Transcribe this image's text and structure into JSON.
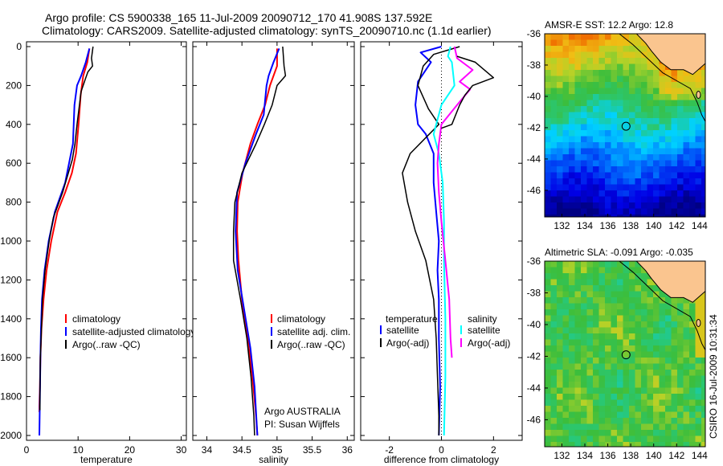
{
  "header": {
    "line1": "Argo profile: CS 5900338_165 11-Jul-2009 20090712_170 41.908S 137.592E",
    "line2": "Climatology: CARS2009. Satellite-adjusted climatology: synTS_20090710.nc (1.1d earlier)"
  },
  "stamp": "CSIRO 16-Jul-2009 10:31:34",
  "colors": {
    "climatology": "#ff0000",
    "satellite": "#0000ff",
    "argo": "#000000",
    "satellite_diff": "#00ffff",
    "argo_diff": "#ff00ff",
    "land": "#fac58f",
    "marker": "#000000"
  },
  "chart_data": [
    {
      "type": "line",
      "name": "temperature-panel",
      "xlabel": "temperature",
      "xlim": [
        0,
        31
      ],
      "ylim": [
        0,
        2000
      ],
      "y_reversed": true,
      "xticks": [
        0,
        10,
        20,
        30
      ],
      "yticks": [
        0,
        200,
        400,
        600,
        800,
        1000,
        1200,
        1400,
        1600,
        1800,
        2000
      ],
      "legend": [
        "climatology",
        "satellite-adjusted climatology",
        "Argo(..raw -QC)"
      ],
      "series": [
        {
          "name": "climatology",
          "color": "#ff0000",
          "width": 2,
          "x": [
            12.2,
            11.8,
            11.0,
            10.5,
            10.1,
            9.6,
            8.8,
            7.5,
            6.0,
            4.8,
            3.9,
            3.3,
            2.9,
            2.7,
            2.6,
            2.5,
            2.5
          ],
          "y": [
            10,
            80,
            150,
            250,
            400,
            550,
            650,
            750,
            850,
            1000,
            1150,
            1300,
            1450,
            1600,
            1750,
            1850,
            1880
          ]
        },
        {
          "name": "satellite",
          "color": "#0000ff",
          "width": 2,
          "x": [
            12.2,
            11.5,
            10.6,
            9.8,
            9.3,
            9.0,
            7.5,
            5.5,
            4.3,
            3.5,
            3.0,
            2.8,
            2.7,
            2.6,
            2.5
          ],
          "y": [
            10,
            80,
            150,
            200,
            300,
            500,
            700,
            850,
            1000,
            1150,
            1300,
            1450,
            1600,
            1800,
            2000
          ]
        },
        {
          "name": "argo",
          "color": "#000000",
          "width": 1.5,
          "x": [
            12.9,
            12.6,
            12.8,
            11.9,
            11.5,
            10.6,
            9.8,
            9.4,
            8.9,
            7.0,
            5.2,
            4.4,
            3.6,
            3.1,
            2.9,
            2.7,
            2.6,
            2.6
          ],
          "y": [
            0,
            60,
            100,
            130,
            160,
            230,
            400,
            500,
            580,
            750,
            880,
            1000,
            1150,
            1300,
            1450,
            1600,
            1800,
            1870
          ]
        }
      ]
    },
    {
      "type": "line",
      "name": "salinity-panel",
      "xlabel": "salinity",
      "xlim": [
        33.8,
        36.1
      ],
      "ylim": [
        0,
        2000
      ],
      "y_reversed": true,
      "xticks": [
        34,
        34.5,
        35,
        35.5,
        36
      ],
      "legend": [
        "climatology",
        "satellite adj. clim.",
        "Argo(..raw -QC)"
      ],
      "annotations": [
        "Argo AUSTRALIA",
        "PI: Susan Wijffels"
      ],
      "series": [
        {
          "name": "climatology",
          "color": "#ff0000",
          "width": 2,
          "x": [
            35.0,
            35.0,
            34.9,
            34.83,
            34.72,
            34.62,
            34.51,
            34.44,
            34.43,
            34.45,
            34.5,
            34.58,
            34.65,
            34.7,
            34.72
          ],
          "y": [
            10,
            100,
            200,
            300,
            400,
            500,
            650,
            800,
            950,
            1100,
            1300,
            1500,
            1700,
            1900,
            2000
          ]
        },
        {
          "name": "satellite",
          "color": "#0000ff",
          "width": 2,
          "x": [
            35.03,
            34.95,
            34.88,
            34.85,
            34.81,
            34.7,
            34.55,
            34.43,
            34.41,
            34.44,
            34.53,
            34.62,
            34.68,
            34.72
          ],
          "y": [
            10,
            80,
            150,
            200,
            350,
            450,
            600,
            750,
            950,
            1150,
            1350,
            1550,
            1750,
            2000
          ]
        },
        {
          "name": "argo",
          "color": "#000000",
          "width": 1.5,
          "x": [
            35.08,
            35.1,
            35.12,
            35.0,
            34.93,
            34.82,
            34.7,
            34.5,
            34.4,
            34.38,
            34.38,
            34.48,
            34.57,
            34.63,
            34.67,
            34.68
          ],
          "y": [
            0,
            100,
            150,
            200,
            300,
            400,
            500,
            650,
            800,
            950,
            1100,
            1300,
            1500,
            1700,
            1900,
            2000
          ]
        }
      ]
    },
    {
      "type": "line",
      "name": "difference-panel",
      "xlabel": "difference from climatology",
      "xlim": [
        -3.1,
        3.1
      ],
      "ylim": [
        0,
        2000
      ],
      "y_reversed": true,
      "xticks": [
        -2,
        0,
        2
      ],
      "legend": [
        "temperature",
        "satellite",
        "Argo(-adj)",
        "salinity",
        "satellite",
        "Argo(-adj)"
      ],
      "series": [
        {
          "name": "temperature satellite",
          "color": "#0000ff",
          "width": 2,
          "x": [
            0.0,
            -0.8,
            -0.4,
            -0.9,
            -1.0,
            -0.9,
            -0.6,
            -0.3,
            -0.3,
            -0.2,
            -0.1,
            -0.15,
            -0.1,
            -0.1,
            -0.05,
            -0.1
          ],
          "y": [
            0,
            30,
            80,
            180,
            300,
            400,
            450,
            550,
            700,
            850,
            1000,
            1150,
            1300,
            1500,
            1750,
            2000
          ]
        },
        {
          "name": "temperature argo",
          "color": "#000000",
          "width": 1.5,
          "x": [
            0.7,
            -0.3,
            -0.7,
            -0.9,
            -0.5,
            -0.1,
            -1.2,
            -1.5,
            -1.3,
            -1.0,
            -0.6,
            -0.3,
            -0.2,
            -0.15,
            -0.1,
            -0.1
          ],
          "y": [
            0,
            40,
            100,
            200,
            320,
            400,
            550,
            650,
            800,
            950,
            1100,
            1300,
            1500,
            1700,
            1900,
            2000
          ]
        },
        {
          "name": "salinity satellite",
          "color": "#00ffff",
          "width": 2,
          "x": [
            0.35,
            0.25,
            0.4,
            0.5,
            0.0,
            -0.2,
            -0.3,
            -0.1,
            0.05,
            0.1,
            0.1,
            0.15,
            0.15,
            0.1
          ],
          "y": [
            0,
            50,
            80,
            200,
            300,
            400,
            450,
            550,
            700,
            900,
            1100,
            1400,
            1700,
            2000
          ]
        },
        {
          "name": "salinity argo",
          "color": "#ff00ff",
          "width": 2,
          "x": [
            0.5,
            0.6,
            1.2,
            0.7,
            1.1,
            0.6,
            0.0,
            -0.1,
            -0.15,
            -0.1,
            0.0,
            0.15,
            0.3,
            0.35,
            0.4
          ],
          "y": [
            0,
            60,
            120,
            180,
            220,
            300,
            400,
            500,
            600,
            750,
            900,
            1100,
            1300,
            1500,
            1600
          ]
        },
        {
          "name": "argo-diff black segment",
          "color": "#000000",
          "width": 1.5,
          "x": [
            0.6,
            1.3,
            2.0,
            1.2,
            0.9,
            0.7,
            0.4,
            0.0
          ],
          "y": [
            50,
            80,
            160,
            200,
            250,
            300,
            400,
            420
          ]
        }
      ]
    },
    {
      "type": "heatmap",
      "name": "sst-map",
      "title": "AMSR-E SST: 12.2 Argo: 12.8",
      "xticks": [
        132,
        134,
        136,
        138,
        140,
        142,
        144
      ],
      "yticks": [
        -36,
        -38,
        -40,
        -42,
        -44,
        -46
      ],
      "xlim": [
        130.5,
        144.5
      ],
      "ylim": [
        -47.7,
        -36
      ],
      "marker": {
        "lon": 137.592,
        "lat": -41.908
      }
    },
    {
      "type": "heatmap",
      "name": "sla-map",
      "title": "Altimetric SLA: -0.091 Argo: -0.035",
      "xticks": [
        132,
        134,
        136,
        138,
        140,
        142,
        144
      ],
      "yticks": [
        -36,
        -38,
        -40,
        -42,
        -44,
        -46
      ],
      "xlim": [
        130.5,
        144.5
      ],
      "ylim": [
        -47.7,
        -36
      ],
      "marker": {
        "lon": 137.592,
        "lat": -41.908
      }
    }
  ]
}
